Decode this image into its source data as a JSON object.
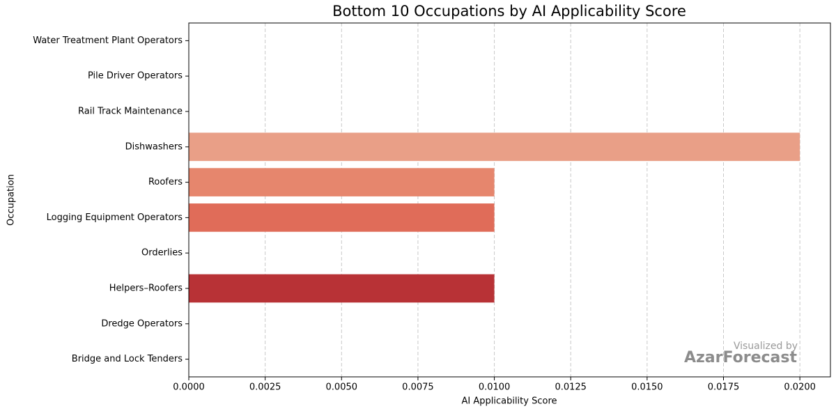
{
  "chart_data": {
    "type": "bar",
    "orientation": "horizontal",
    "title": "Bottom 10 Occupations by AI Applicability Score",
    "x_label": "AI Applicability Score",
    "y_label": "Occupation",
    "categories": [
      "Water Treatment Plant Operators",
      "Pile Driver Operators",
      "Rail Track Maintenance",
      "Dishwashers",
      "Roofers",
      "Logging Equipment Operators",
      "Orderlies",
      "Helpers–Roofers",
      "Dredge Operators",
      "Bridge and Lock Tenders"
    ],
    "values": [
      0,
      0,
      0,
      0.02,
      0.01,
      0.01,
      0,
      0.01,
      0,
      0
    ],
    "colors": [
      "#fbd5c2",
      "#f6bfa7",
      "#f0ad96",
      "#e99f87",
      "#e6866d",
      "#e06c59",
      "#cf4a44",
      "#b83236",
      "#9e1f2c",
      "#7f1021"
    ],
    "xlim": [
      0,
      0.021
    ],
    "xticks": [
      {
        "value": 0,
        "label": "0.0000"
      },
      {
        "value": 0.0025,
        "label": "0.0025"
      },
      {
        "value": 0.005,
        "label": "0.0050"
      },
      {
        "value": 0.0075,
        "label": "0.0075"
      },
      {
        "value": 0.01,
        "label": "0.0100"
      },
      {
        "value": 0.0125,
        "label": "0.0125"
      },
      {
        "value": 0.015,
        "label": "0.0150"
      },
      {
        "value": 0.0175,
        "label": "0.0175"
      },
      {
        "value": 0.02,
        "label": "0.0200"
      }
    ],
    "grid": true,
    "watermark": {
      "line1": "Visualized by",
      "line2": "AzarForecast"
    }
  }
}
